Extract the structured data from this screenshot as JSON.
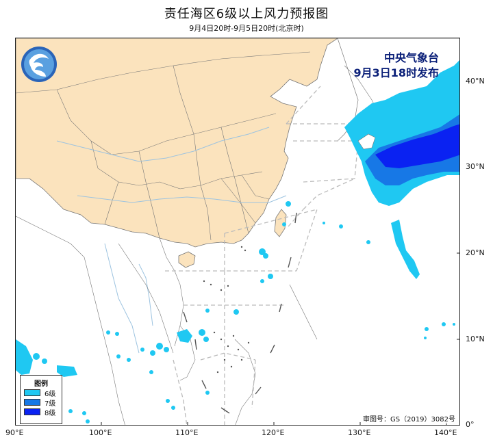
{
  "header": {
    "title": "责任海区6级以上风力预报图",
    "subtitle": "9月4日20时-9月5日20时(北京时)"
  },
  "issuer": {
    "line1": "中央气象台",
    "line2": "9月3日18时发布"
  },
  "legend": {
    "title": "图例",
    "items": [
      {
        "label": "6级",
        "color": "#1fc8f2"
      },
      {
        "label": "7级",
        "color": "#1778e6"
      },
      {
        "label": "8级",
        "color": "#0a22f2"
      }
    ]
  },
  "review_number": "审图号：GS（2019）3082号",
  "axes": {
    "x_ticks": [
      "90°E",
      "100°E",
      "110°E",
      "120°E",
      "130°E",
      "140°E"
    ],
    "y_ticks": [
      "40°N",
      "30°N",
      "20°N",
      "10°N",
      "0°"
    ]
  },
  "colors": {
    "land_china": "#fbe3bd",
    "border": "#666666",
    "river": "#9cc3e0",
    "sea_boundary": "#bbbbbb"
  }
}
